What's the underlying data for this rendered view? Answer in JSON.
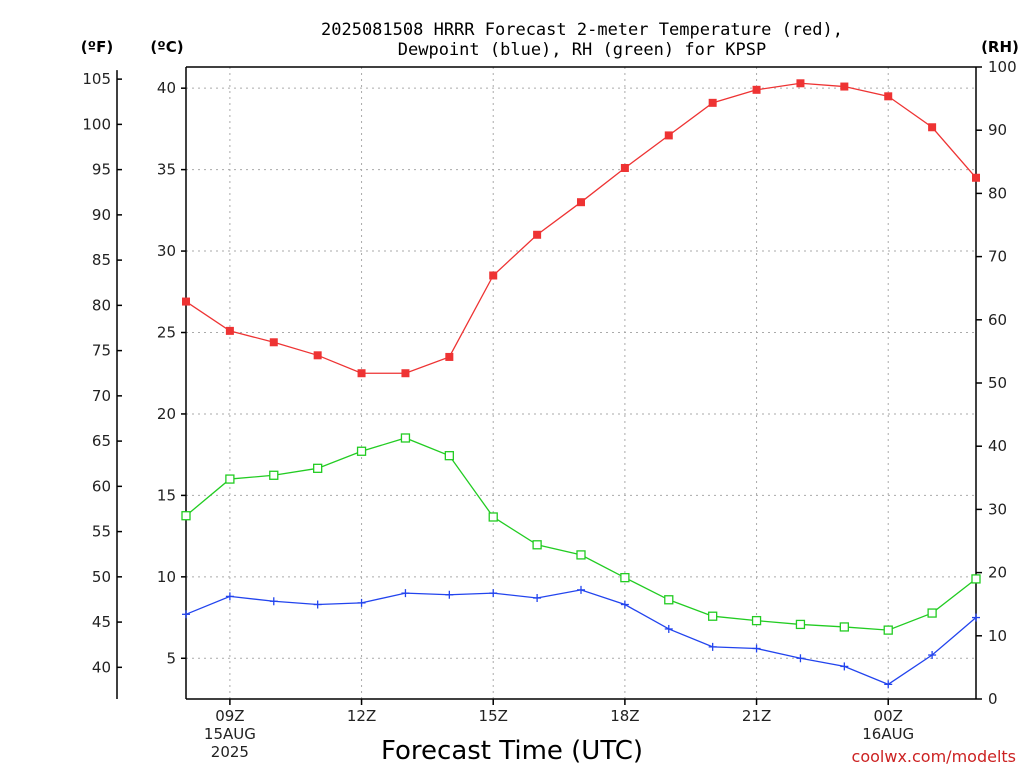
{
  "chart_data": {
    "type": "line",
    "title_line1": "2025081508 HRRR Forecast 2-meter Temperature (red),",
    "title_line2": "Dewpoint (blue), RH (green) for KPSP",
    "left_unit_f": "(ºF)",
    "left_unit_c": "(ºC)",
    "right_unit": "(RH)",
    "xlabel": "Forecast Time (UTC)",
    "credit": "coolwx.com/modelts",
    "x_hours": [
      8,
      9,
      10,
      11,
      12,
      13,
      14,
      15,
      16,
      17,
      18,
      19,
      20,
      21,
      22,
      23,
      24,
      25,
      26
    ],
    "x_ticks": [
      {
        "hour": 9,
        "lines": [
          "09Z",
          "15AUG",
          "2025"
        ]
      },
      {
        "hour": 12,
        "lines": [
          "12Z"
        ]
      },
      {
        "hour": 15,
        "lines": [
          "15Z"
        ]
      },
      {
        "hour": 18,
        "lines": [
          "18Z"
        ]
      },
      {
        "hour": 21,
        "lines": [
          "21Z"
        ]
      },
      {
        "hour": 24,
        "lines": [
          "00Z",
          "16AUG"
        ]
      }
    ],
    "celsius_ticks": [
      5,
      10,
      15,
      20,
      25,
      30,
      35,
      40
    ],
    "fahrenheit_ticks": [
      40,
      45,
      50,
      55,
      60,
      65,
      70,
      75,
      80,
      85,
      90,
      95,
      100,
      105
    ],
    "rh_ticks": [
      0,
      10,
      20,
      30,
      40,
      50,
      60,
      70,
      80,
      90,
      100
    ],
    "ylim_c": [
      2.5,
      41.3
    ],
    "ylim_rh": [
      0,
      100
    ],
    "grid": true,
    "series": [
      {
        "name": "Temperature",
        "axis": "celsius",
        "color": "#ee3333",
        "marker": "filled-square",
        "values": [
          26.9,
          25.1,
          24.4,
          23.6,
          22.5,
          22.5,
          23.5,
          28.5,
          31.0,
          33.0,
          35.1,
          37.1,
          39.1,
          39.9,
          40.3,
          40.1,
          39.5,
          37.6,
          34.5
        ]
      },
      {
        "name": "Dewpoint",
        "axis": "celsius",
        "color": "#2244ee",
        "marker": "plus",
        "values": [
          7.7,
          8.8,
          8.5,
          8.3,
          8.4,
          9.0,
          8.9,
          9.0,
          8.7,
          9.2,
          8.3,
          6.8,
          5.7,
          5.6,
          5.0,
          4.5,
          3.4,
          5.2,
          7.5
        ]
      },
      {
        "name": "RH",
        "axis": "rh",
        "color": "#22cc22",
        "marker": "open-square",
        "values": [
          29.0,
          34.8,
          35.4,
          36.5,
          39.2,
          41.3,
          38.5,
          28.8,
          24.4,
          22.8,
          19.2,
          15.7,
          13.1,
          12.4,
          11.8,
          11.4,
          10.9,
          13.6,
          19.0
        ]
      }
    ]
  }
}
